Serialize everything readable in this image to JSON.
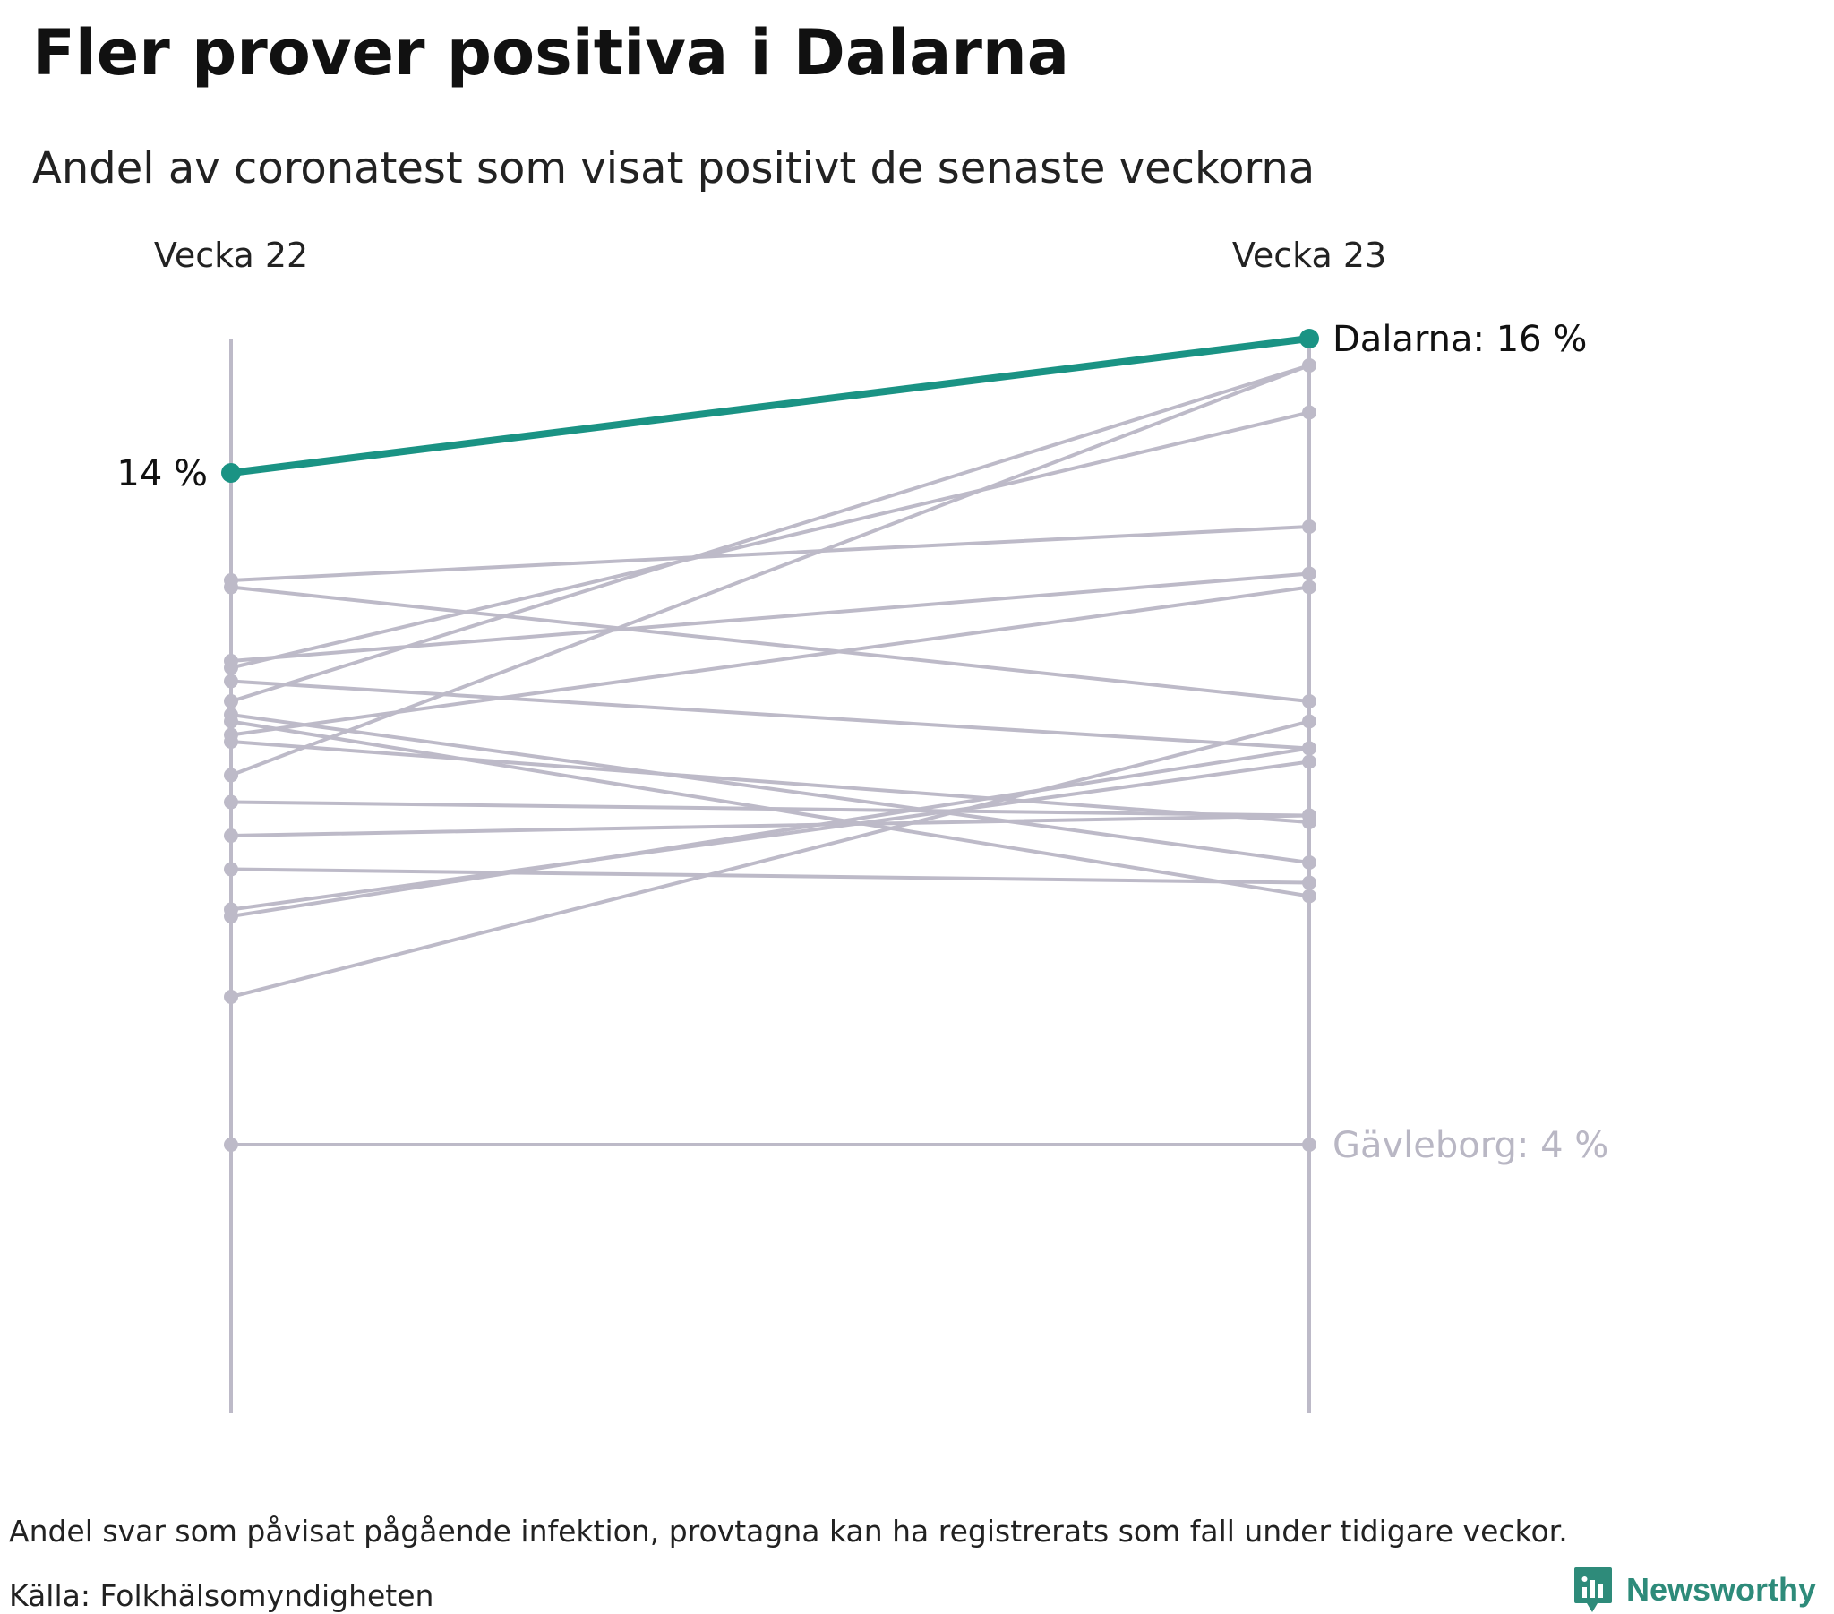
{
  "title": "Fler prover positiva i Dalarna",
  "subtitle": "Andel av coronatest som visat positivt de senaste veckorna",
  "note": "Andel svar som påvisat pågående infektion, provtagna kan ha registrerats som fall under tidigare veckor.",
  "source": "Källa: Folkhälsomyndigheten",
  "brand": "Newsworthy",
  "colors": {
    "highlight": "#1a9384",
    "other": "#bdbac8",
    "annotation_muted": "#b9b7c4",
    "brand": "#2e8b7a"
  },
  "chart_data": {
    "type": "line",
    "categories": [
      "Vecka 22",
      "Vecka 23"
    ],
    "highlight": {
      "name": "Dalarna",
      "values": [
        14.0,
        16.0
      ],
      "start_label": "14 %",
      "end_label": "Dalarna: 16 %"
    },
    "lowest": {
      "name": "Gävleborg",
      "values": [
        4.0,
        4.0
      ],
      "end_label": "Gävleborg: 4 %"
    },
    "others": [
      [
        12.4,
        13.2
      ],
      [
        12.3,
        10.6
      ],
      [
        11.2,
        12.5
      ],
      [
        11.1,
        14.9
      ],
      [
        10.9,
        9.9
      ],
      [
        10.6,
        15.6
      ],
      [
        10.4,
        8.2
      ],
      [
        10.3,
        7.7
      ],
      [
        10.1,
        12.3
      ],
      [
        10.0,
        8.8
      ],
      [
        9.5,
        15.6
      ],
      [
        9.1,
        8.9
      ],
      [
        8.6,
        8.9
      ],
      [
        8.1,
        7.9
      ],
      [
        7.5,
        9.7
      ],
      [
        7.4,
        9.9
      ],
      [
        6.2,
        10.3
      ]
    ],
    "ylim": [
      0,
      16
    ]
  }
}
